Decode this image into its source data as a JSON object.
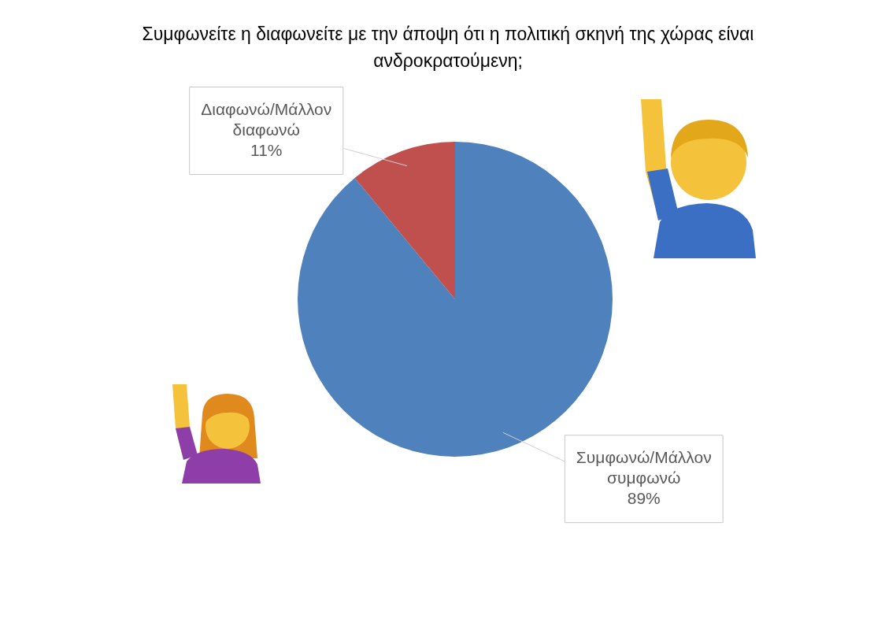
{
  "chart_data": {
    "type": "pie",
    "title": "Συμφωνείτε η διαφωνείτε με την άποψη ότι η πολιτική σκηνή της χώρας είναι ανδροκρατούμενη;",
    "categories": [
      "Συμφωνώ/Μάλλον συμφωνώ",
      "Διαφωνώ/Μάλλον διαφωνώ"
    ],
    "values": [
      89,
      11
    ],
    "colors": [
      "#4f81bd",
      "#c0504d"
    ],
    "value_labels": [
      "89%",
      "11%"
    ]
  }
}
